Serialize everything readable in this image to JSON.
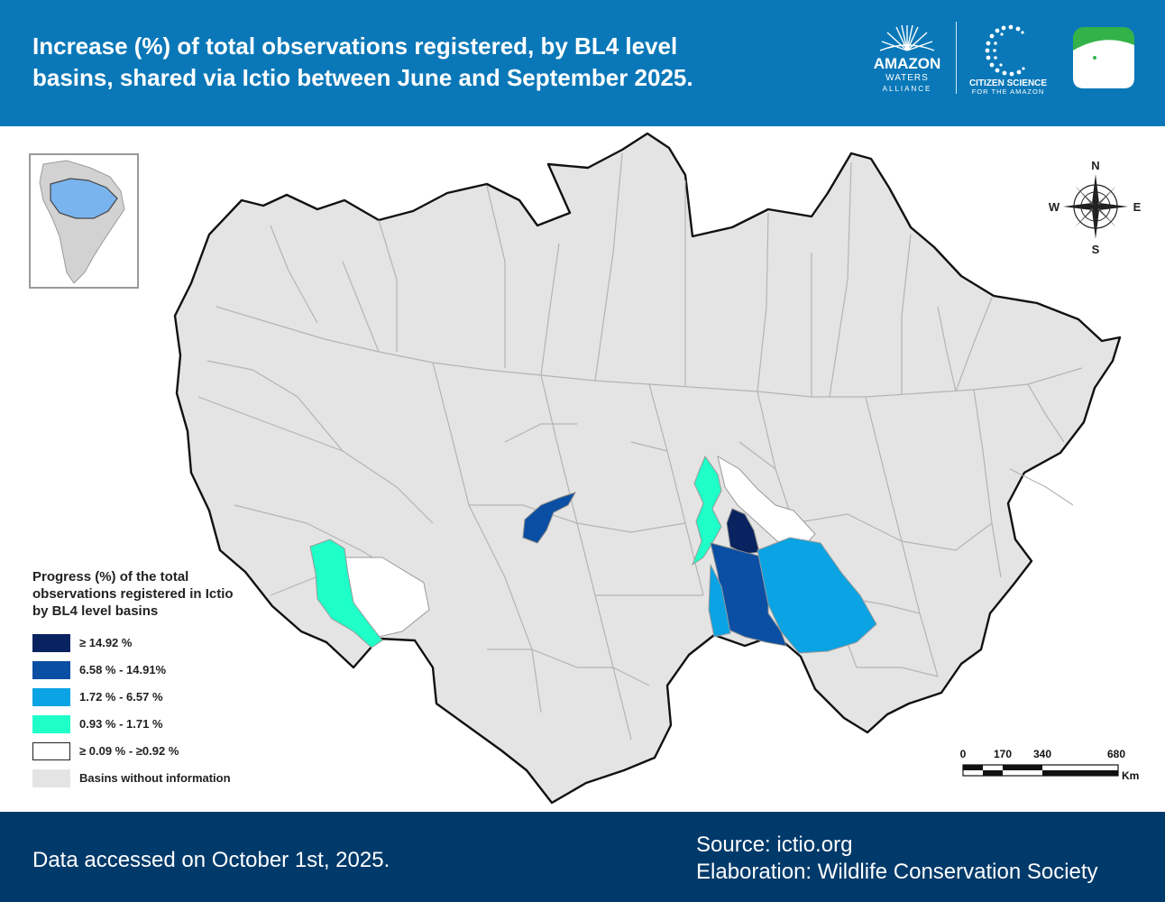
{
  "header": {
    "title_line1": "Increase (%) of total observations registered, by BL4 level",
    "title_line2": "basins, shared via Ictio between June and September 2025.",
    "logos": {
      "amazon_name": "AMAZON",
      "amazon_waters": "WATERS",
      "amazon_alliance": "ALLIANCE",
      "citizen_line1": "CITIZEN SCIENCE",
      "citizen_line2": "FOR THE AMAZON"
    }
  },
  "compass": {
    "n": "N",
    "s": "S",
    "e": "E",
    "w": "W"
  },
  "legend": {
    "title": "Progress (%) of the total observations registered in Ictio by BL4 level basins",
    "items": [
      {
        "label": "≥ 14.92 %",
        "color": "#08235f"
      },
      {
        "label": "6.58 % - 14.91%",
        "color": "#0a4fa3"
      },
      {
        "label": "1.72 % - 6.57 %",
        "color": "#0aa3e3"
      },
      {
        "label": "0.93 % - 1.71 %",
        "color": "#1fffc8"
      },
      {
        "label": "≥ 0.09 % - ≥0.92 %",
        "color": "#ffffff"
      },
      {
        "label": "Basins without information",
        "color": "#e4e4e4"
      }
    ]
  },
  "scale": {
    "ticks": [
      "0",
      "170",
      "340",
      "680"
    ],
    "unit": "Km"
  },
  "footer": {
    "date": "Data accessed on October 1st, 2025.",
    "source": "Source: ictio.org",
    "elaboration": "Elaboration: Wildlife Conservation Society"
  },
  "colors": {
    "header_bg": "#0a78b8",
    "footer_bg": "#003a6a",
    "basin_gray": "#e4e4e4",
    "river_line": "#b4b4b4"
  }
}
